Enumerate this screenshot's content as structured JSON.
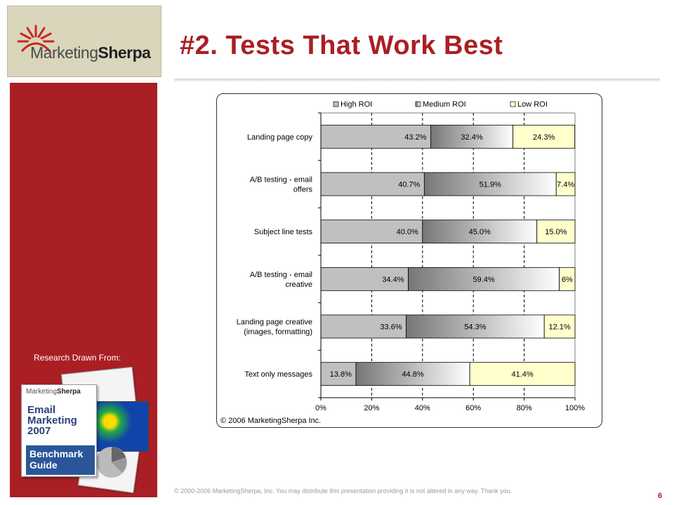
{
  "slide": {
    "title": "#2. Tests That Work Best",
    "footer": "© 2000-2006 MarketingSherpa, Inc. You may distribute this presentation providing it is not altered in any way. Thank you.",
    "page_number": "6"
  },
  "sidebar": {
    "logo_part1": "Marketing",
    "logo_part2": "Sherpa",
    "research_label": "Research Drawn From:",
    "guide": {
      "logo_part1": "Marketing",
      "logo_part2": "Sherpa",
      "title_lines": [
        "Email",
        "Marketing",
        "2007"
      ],
      "band_lines": [
        "Benchmark",
        "Guide"
      ]
    }
  },
  "colors": {
    "brand_red": "#a91f24",
    "high_roi": "#c0c0c0",
    "medium_roi_dark": "#777777",
    "medium_roi_light": "#ffffff",
    "low_roi": "#ffffcc"
  },
  "chart_data": {
    "type": "bar",
    "orientation": "horizontal-stacked-100",
    "categories": [
      "Landing page copy",
      "A/B testing - email offers",
      "Subject line tests",
      "A/B testing - email creative",
      "Landing page creative (images, formatting)",
      "Text only messages"
    ],
    "category_label_lines": [
      [
        "Landing page copy"
      ],
      [
        "A/B testing - email",
        "offers"
      ],
      [
        "Subject line tests"
      ],
      [
        "A/B testing - email",
        "creative"
      ],
      [
        "Landing page creative",
        "(images, formatting)"
      ],
      [
        "Text only messages"
      ]
    ],
    "series": [
      {
        "name": "High ROI",
        "values": [
          43.2,
          40.7,
          40.0,
          34.4,
          33.6,
          13.8
        ],
        "labels": [
          "43.2%",
          "40.7%",
          "40.0%",
          "34.4%",
          "33.6%",
          "13.8%"
        ]
      },
      {
        "name": "Medium ROI",
        "values": [
          32.4,
          51.9,
          45.0,
          59.4,
          54.3,
          44.8
        ],
        "labels": [
          "32.4%",
          "51.9%",
          "45.0%",
          "59.4%",
          "54.3%",
          "44.8%"
        ]
      },
      {
        "name": "Low ROI",
        "values": [
          24.3,
          7.4,
          15.0,
          6.2,
          12.1,
          41.4
        ],
        "labels": [
          "24.3%",
          "7.4%",
          "15.0%",
          "6%",
          "12.1%",
          "41.4%"
        ]
      }
    ],
    "x_ticks": [
      "0%",
      "20%",
      "40%",
      "60%",
      "80%",
      "100%"
    ],
    "xlim": [
      0,
      100
    ],
    "grid": "vertical dashed",
    "legend": "top",
    "copyright": "© 2006 MarketingSherpa Inc."
  }
}
